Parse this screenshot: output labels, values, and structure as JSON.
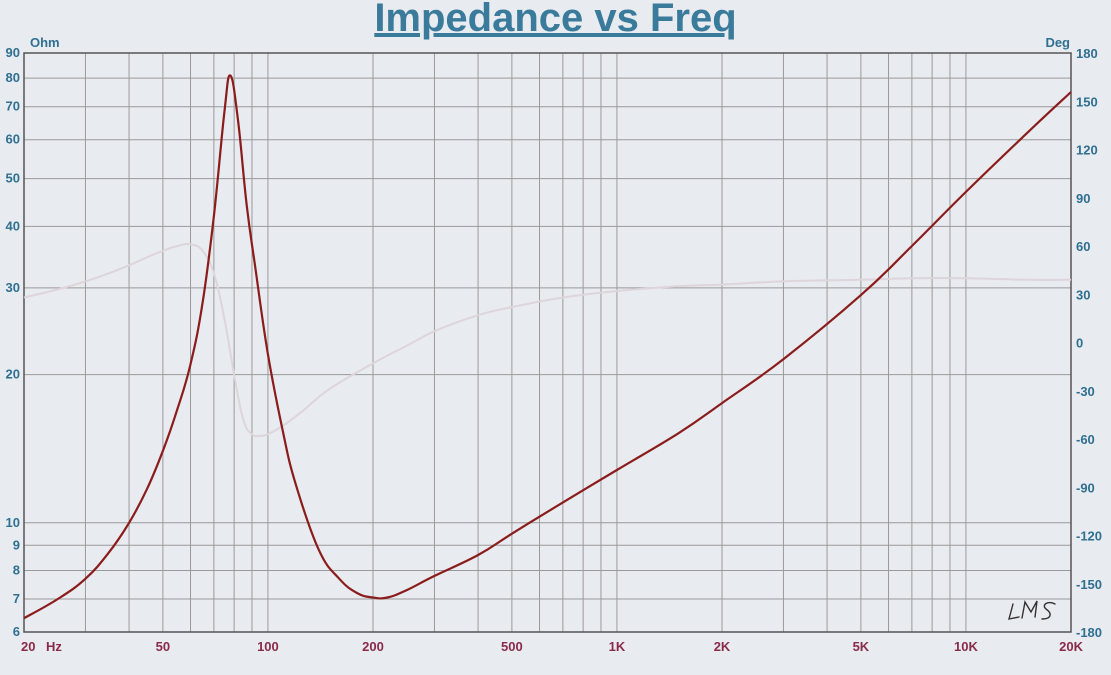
{
  "chart_data": {
    "type": "line",
    "title": "Impedance vs Freq",
    "x_scale": "log",
    "xlim": [
      20,
      20000
    ],
    "x_tick_values": [
      20,
      50,
      100,
      200,
      500,
      1000,
      2000,
      5000,
      10000,
      20000
    ],
    "x_tick_labels": [
      "20",
      "50",
      "100",
      "200",
      "500",
      "1K",
      "2K",
      "5K",
      "10K",
      "20K"
    ],
    "x_unit_label": "Hz",
    "left_axis": {
      "unit_label": "Ohm",
      "scale": "log",
      "ylim": [
        6,
        90
      ],
      "tick_values": [
        6,
        7,
        8,
        9,
        10,
        20,
        30,
        40,
        50,
        60,
        70,
        80,
        90
      ],
      "tick_labels": [
        "6",
        "7",
        "8",
        "9",
        "10",
        "20",
        "30",
        "40",
        "50",
        "60",
        "70",
        "80",
        "90"
      ]
    },
    "right_axis": {
      "unit_label": "Deg",
      "scale": "linear",
      "ylim": [
        -180,
        180
      ],
      "tick_values": [
        -180,
        -150,
        -120,
        -90,
        -60,
        -30,
        0,
        30,
        60,
        90,
        120,
        150,
        180
      ],
      "tick_labels": [
        "-180",
        "-150",
        "-120",
        "-90",
        "-60",
        "-30",
        "0",
        "30",
        "60",
        "90",
        "120",
        "150",
        "180"
      ]
    },
    "grid": true,
    "series": [
      {
        "axis": "left",
        "color": "#8b1c1c",
        "x": [
          20,
          25,
          30,
          35,
          40,
          45,
          50,
          55,
          60,
          65,
          70,
          75,
          78,
          82,
          87,
          92,
          100,
          110,
          120,
          140,
          160,
          180,
          200,
          220,
          250,
          300,
          400,
          500,
          700,
          1000,
          1500,
          2000,
          3000,
          5000,
          7000,
          10000,
          15000,
          20000
        ],
        "y": [
          6.4,
          7.0,
          7.7,
          8.7,
          10.0,
          11.7,
          14.0,
          17.0,
          21.0,
          28.0,
          42.0,
          68.0,
          81.0,
          66.0,
          44.0,
          33.0,
          22.0,
          15.5,
          12.0,
          8.8,
          7.7,
          7.2,
          7.05,
          7.05,
          7.3,
          7.8,
          8.6,
          9.5,
          11.0,
          12.8,
          15.2,
          17.5,
          21.5,
          29.0,
          36.5,
          47.0,
          62.0,
          75.0
        ]
      },
      {
        "axis": "right",
        "color": "#ddd4dc",
        "x": [
          20,
          25,
          30,
          35,
          40,
          45,
          50,
          55,
          60,
          65,
          70,
          75,
          80,
          85,
          90,
          95,
          100,
          110,
          125,
          150,
          200,
          250,
          300,
          400,
          500,
          700,
          1000,
          1500,
          2000,
          3000,
          5000,
          7000,
          10000,
          15000,
          20000
        ],
        "y": [
          28,
          33,
          38,
          43,
          48,
          53,
          57,
          60,
          61,
          57,
          43,
          15,
          -20,
          -48,
          -57,
          -58,
          -57,
          -52,
          -43,
          -29,
          -13,
          -2,
          7,
          17,
          22,
          28,
          32,
          35,
          36,
          38,
          39,
          40,
          40,
          39,
          39
        ]
      }
    ],
    "watermark": "LMS"
  }
}
